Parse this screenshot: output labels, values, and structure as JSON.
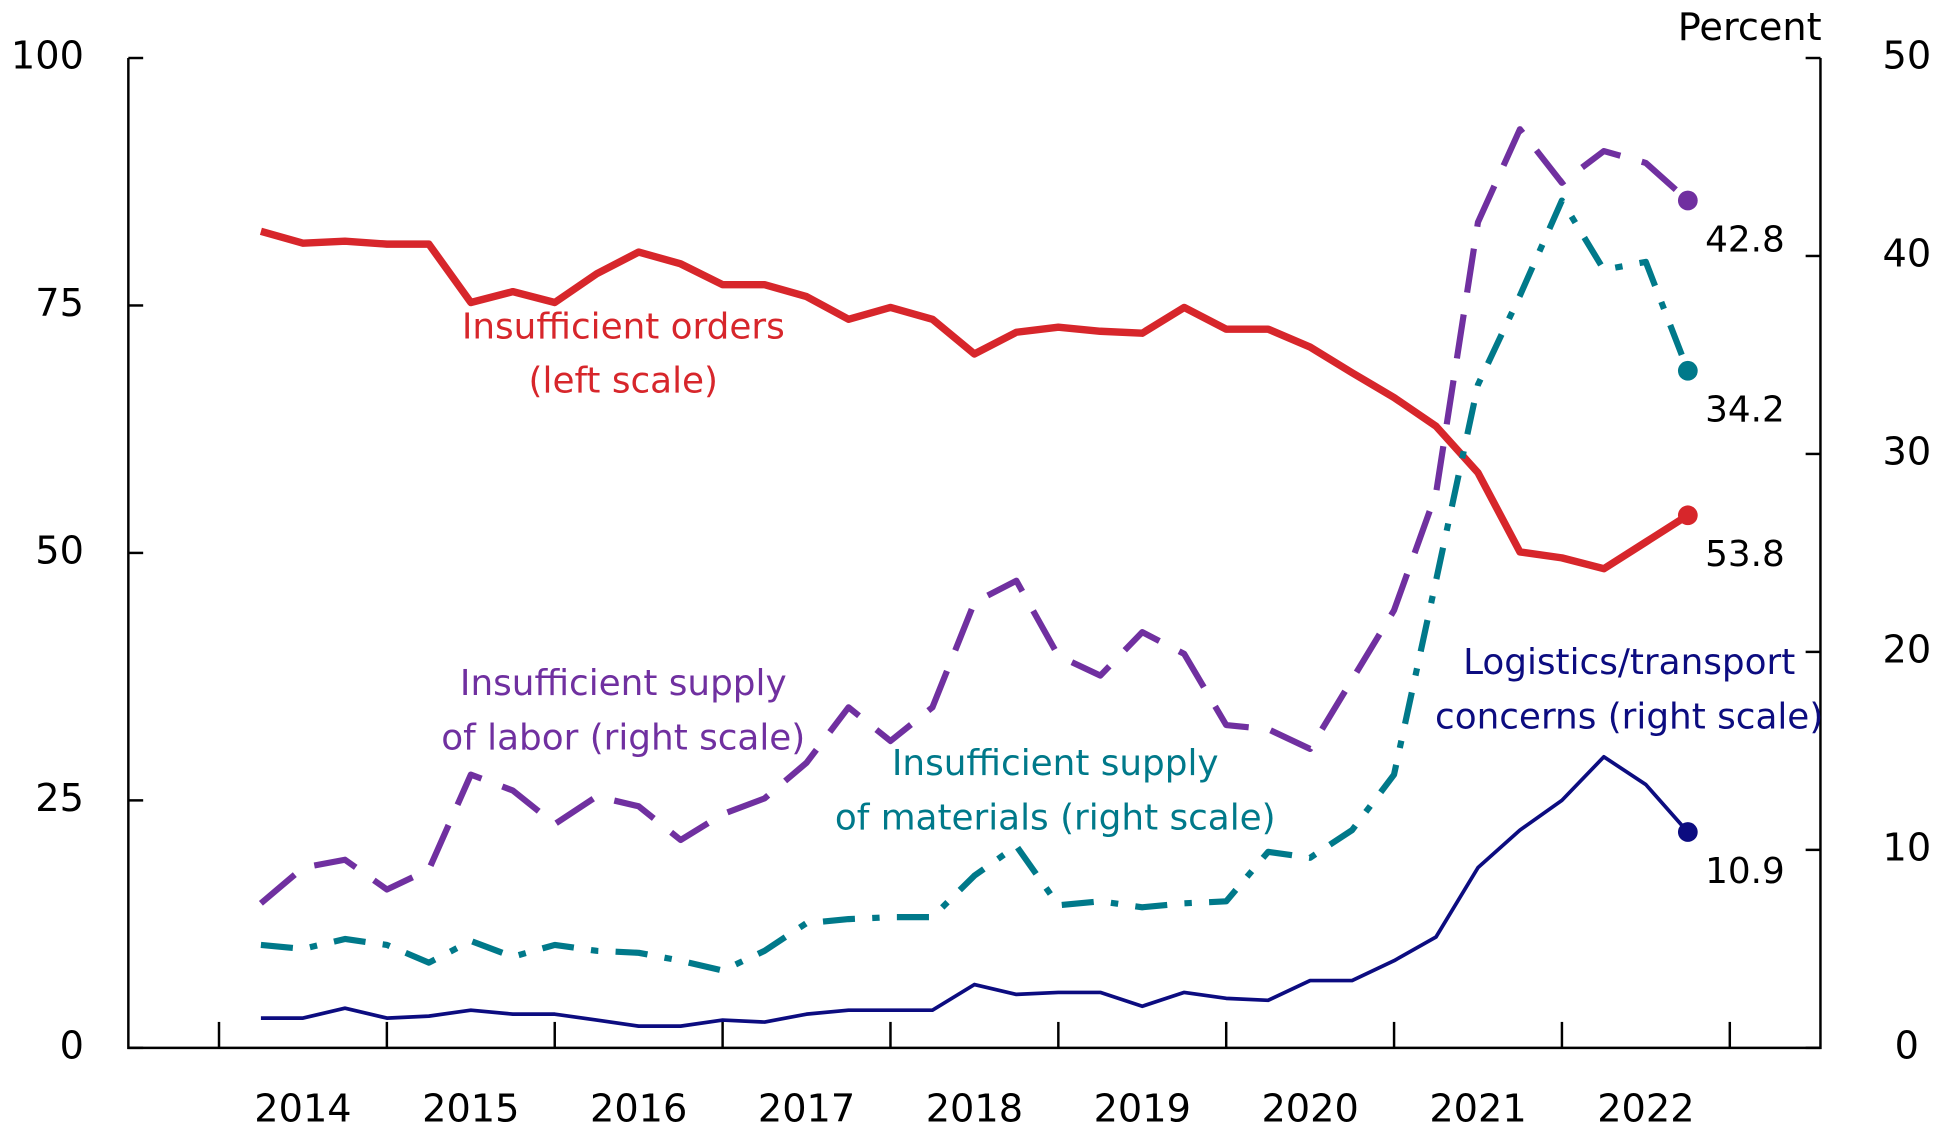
{
  "chart_data": {
    "type": "line",
    "y_axis_label": "Percent",
    "x": [
      2014.25,
      2014.5,
      2014.75,
      2015.0,
      2015.25,
      2015.5,
      2015.75,
      2016.0,
      2016.25,
      2016.5,
      2016.75,
      2017.0,
      2017.25,
      2017.5,
      2017.75,
      2018.0,
      2018.25,
      2018.5,
      2018.75,
      2019.0,
      2019.25,
      2019.5,
      2019.75,
      2020.0,
      2020.25,
      2020.5,
      2020.75,
      2021.0,
      2021.25,
      2021.5,
      2021.75,
      2022.0,
      2022.25,
      2022.5,
      2022.75
    ],
    "xlim": [
      2013.46,
      2023.54
    ],
    "xticks": [
      2014,
      2015,
      2016,
      2017,
      2018,
      2019,
      2020,
      2021,
      2022,
      2023
    ],
    "xtick_labels": [
      {
        "value": 2014.5,
        "label": "2014"
      },
      {
        "value": 2015.5,
        "label": "2015"
      },
      {
        "value": 2016.5,
        "label": "2016"
      },
      {
        "value": 2017.5,
        "label": "2017"
      },
      {
        "value": 2018.5,
        "label": "2018"
      },
      {
        "value": 2019.5,
        "label": "2019"
      },
      {
        "value": 2020.5,
        "label": "2020"
      },
      {
        "value": 2021.5,
        "label": "2021"
      },
      {
        "value": 2022.5,
        "label": "2022"
      }
    ],
    "ylim": [
      0,
      100
    ],
    "yticks": [
      0,
      25,
      50,
      75,
      100
    ],
    "y2lim": [
      0,
      50
    ],
    "y2ticks": [
      0,
      10,
      20,
      30,
      40,
      50
    ],
    "series": [
      {
        "name": [
          "Insufficient orders",
          "(left scale)"
        ],
        "color": "#d7262b",
        "style": "solid",
        "width": 6,
        "values": [
          82.5,
          81.3,
          81.5,
          81.2,
          81.2,
          75.3,
          76.4,
          75.3,
          78.2,
          80.4,
          79.2,
          77.1,
          77.1,
          75.9,
          73.6,
          74.8,
          73.6,
          70.1,
          72.3,
          72.8,
          72.4,
          72.2,
          74.8,
          72.6,
          72.6,
          70.8,
          68.2,
          65.7,
          62.8,
          58.1,
          50.1,
          49.5,
          48.4,
          51.1,
          53.8
        ]
      },
      {
        "name": [
          "Insufficient supply",
          "of labor (right scale)"
        ],
        "color": "#7030a0",
        "style": "dashed",
        "width": 5,
        "axis": "y2",
        "values": [
          7.3,
          9.1,
          9.5,
          8.0,
          9.0,
          13.8,
          13.0,
          11.3,
          12.7,
          12.2,
          10.5,
          11.8,
          12.6,
          14.4,
          17.2,
          15.5,
          17.2,
          22.5,
          23.6,
          19.8,
          18.8,
          21.0,
          19.9,
          16.3,
          16.1,
          15.1,
          18.6,
          22.1,
          28.0,
          41.7,
          46.4,
          43.7,
          45.3,
          44.7,
          42.8
        ]
      },
      {
        "name": [
          "Insufficient supply",
          "of materials (right scale)"
        ],
        "color": "#00798a",
        "style": "dashdot",
        "width": 5,
        "axis": "y2",
        "values": [
          5.2,
          5.0,
          5.5,
          5.2,
          4.3,
          5.4,
          4.6,
          5.2,
          4.9,
          4.8,
          4.4,
          3.9,
          4.9,
          6.3,
          6.5,
          6.6,
          6.6,
          8.7,
          10.2,
          7.2,
          7.4,
          7.1,
          7.3,
          7.4,
          9.9,
          9.6,
          11.0,
          13.8,
          23.6,
          33.5,
          38.0,
          42.8,
          39.3,
          39.7,
          34.2
        ]
      },
      {
        "name": [
          "Logistics/transport",
          "concerns (right scale)"
        ],
        "color": "#0c0c80",
        "style": "solid",
        "width": 3,
        "axis": "y2",
        "values": [
          1.5,
          1.5,
          2.0,
          1.5,
          1.6,
          1.9,
          1.7,
          1.7,
          1.4,
          1.1,
          1.1,
          1.4,
          1.3,
          1.7,
          1.9,
          1.9,
          1.9,
          3.2,
          2.7,
          2.8,
          2.8,
          2.1,
          2.8,
          2.5,
          2.4,
          3.4,
          3.4,
          4.4,
          5.6,
          9.1,
          11.0,
          12.5,
          14.7,
          13.3,
          10.9
        ]
      }
    ]
  }
}
